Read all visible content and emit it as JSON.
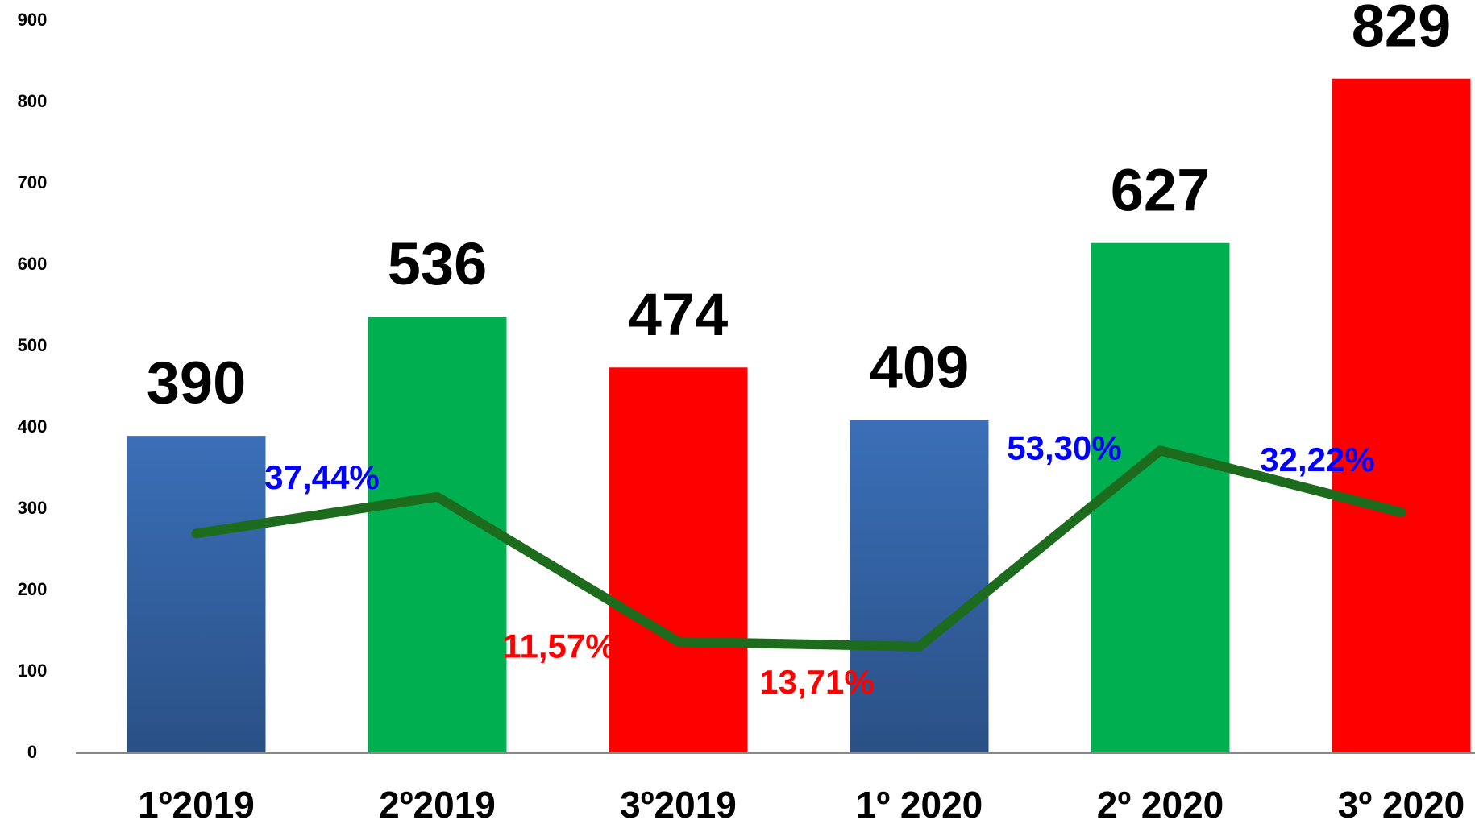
{
  "chart_data": {
    "type": "bar",
    "categories": [
      "1º2019",
      "2º2019",
      "3º2019",
      "1º 2020",
      "2º 2020",
      "3º 2020"
    ],
    "series": [
      {
        "type": "bar",
        "colors": [
          "#3566a8",
          "#00b050",
          "#ff0000",
          "#3566a8",
          "#00b050",
          "#ff0000"
        ],
        "values": [
          390,
          536,
          474,
          409,
          627,
          829
        ]
      },
      {
        "type": "line",
        "color": "#1d6b1d",
        "values": [
          270,
          315,
          137,
          131,
          372,
          296
        ]
      }
    ],
    "annotations": [
      {
        "text": "37,44%",
        "color": "#0000ff"
      },
      {
        "text": "11,57%",
        "color": "#ff0000"
      },
      {
        "text": "13,71%",
        "color": "#ff0000"
      },
      {
        "text": "53,30%",
        "color": "#0000ff"
      },
      {
        "text": "32,22%",
        "color": "#0000ff"
      }
    ],
    "ylim": [
      0,
      900
    ],
    "yticks": [
      0,
      100,
      200,
      300,
      400,
      500,
      600,
      700,
      800,
      900
    ]
  }
}
